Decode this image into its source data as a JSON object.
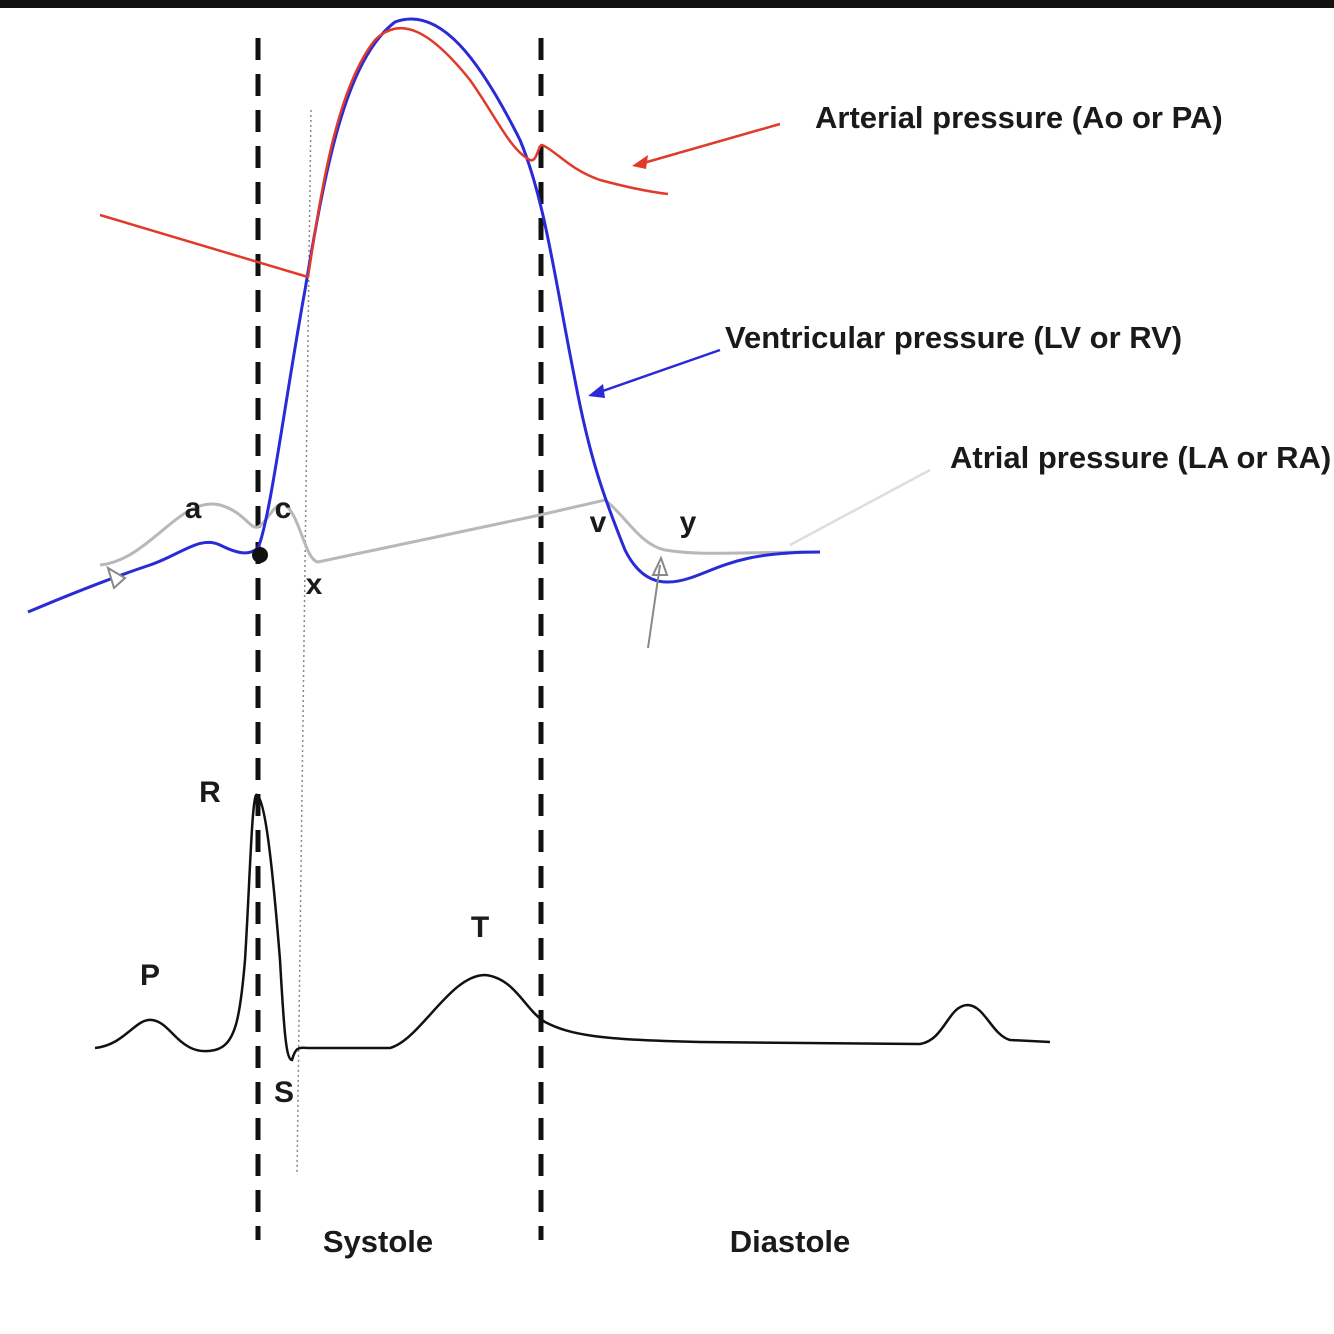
{
  "labels": {
    "arterial": "Arterial pressure (Ao or PA)",
    "ventricular": "Ventricular pressure (LV or RV)",
    "atrial": "Atrial pressure (LA or RA)"
  },
  "waves": {
    "a": "a",
    "c": "c",
    "x": "x",
    "v": "v",
    "y": "y"
  },
  "ecg": {
    "P": "P",
    "R": "R",
    "S": "S",
    "T": "T"
  },
  "phases": {
    "systole": "Systole",
    "diastole": "Diastole"
  }
}
